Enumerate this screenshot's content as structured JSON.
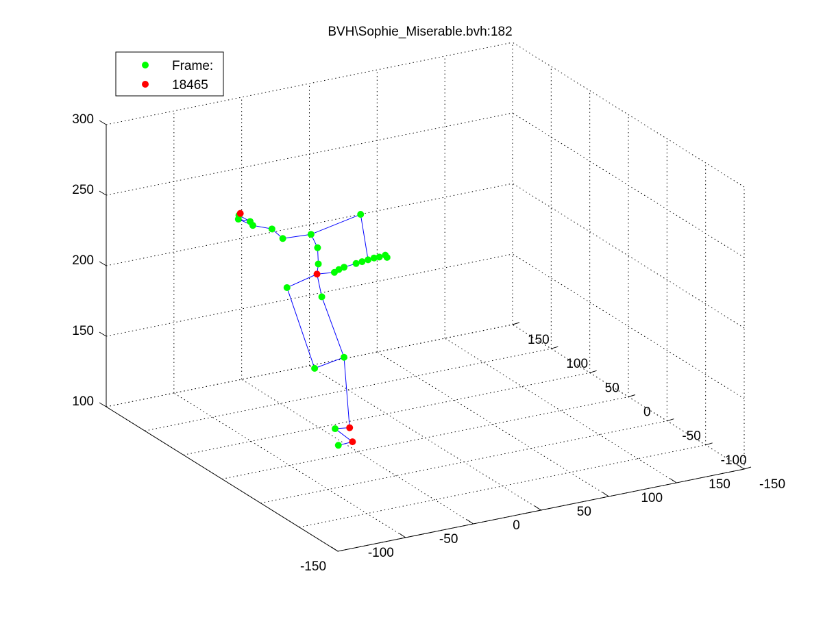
{
  "chart_data": {
    "type": "scatter3d",
    "title": "BVH\\Sophie_Miserable.bvh:182",
    "xlim": [
      -150,
      150
    ],
    "ylim": [
      -150,
      150
    ],
    "zlim": [
      100,
      300
    ],
    "x_ticks": [
      "-150",
      "-100",
      "-50",
      "0",
      "50",
      "100",
      "150"
    ],
    "y_ticks": [
      "-150",
      "-100",
      "-50",
      "0",
      "50",
      "100",
      "150"
    ],
    "z_ticks": [
      "100",
      "150",
      "200",
      "250",
      "300"
    ],
    "grid": true,
    "legend": {
      "placement": "top-left",
      "entries": [
        {
          "label": "Frame:",
          "color": "#00ff00"
        },
        {
          "label": "18465",
          "color": "#ff0000"
        }
      ]
    },
    "colors": {
      "joint": "#00ff00",
      "end_effector": "#ff0000",
      "bone": "#0000ff"
    },
    "joints": [
      {
        "x": -44,
        "y": 17,
        "z": 100,
        "type": "end"
      },
      {
        "x": -33,
        "y": 40,
        "z": 100,
        "type": "end"
      },
      {
        "x": -55,
        "y": 16,
        "z": 100
      },
      {
        "x": -42,
        "y": 43,
        "z": 100
      },
      {
        "x": -60,
        "y": 38,
        "z": 148
      },
      {
        "x": -40,
        "y": 35,
        "z": 153
      },
      {
        "x": -65,
        "y": 65,
        "z": 197
      },
      {
        "x": -45,
        "y": 55,
        "z": 190
      },
      {
        "x": -40,
        "y": 70,
        "z": 200,
        "type": "end"
      },
      {
        "x": -30,
        "y": 65,
        "z": 201
      },
      {
        "x": -25,
        "y": 68,
        "z": 201
      },
      {
        "x": -20,
        "y": 70,
        "z": 201
      },
      {
        "x": -10,
        "y": 72,
        "z": 201
      },
      {
        "x": -5,
        "y": 73,
        "z": 201
      },
      {
        "x": 0,
        "y": 74,
        "z": 201
      },
      {
        "x": 5,
        "y": 75,
        "z": 201
      },
      {
        "x": 10,
        "y": 77,
        "z": 200
      },
      {
        "x": 15,
        "y": 78,
        "z": 200
      },
      {
        "x": 14,
        "y": 74,
        "z": 200
      },
      {
        "x": -39,
        "y": 70,
        "z": 207
      },
      {
        "x": -35,
        "y": 78,
        "z": 215
      },
      {
        "x": -33,
        "y": 90,
        "z": 220
      },
      {
        "x": -55,
        "y": 88,
        "z": 222
      },
      {
        "x": -55,
        "y": 102,
        "z": 224
      },
      {
        "x": -60,
        "y": 118,
        "z": 222
      },
      {
        "x": -65,
        "y": 128,
        "z": 224
      },
      {
        "x": -58,
        "y": 125,
        "z": 222
      },
      {
        "x": -60,
        "y": 136,
        "z": 223
      },
      {
        "x": -55,
        "y": 143,
        "z": 221,
        "type": "end"
      },
      {
        "x": 15,
        "y": 110,
        "z": 218
      }
    ],
    "bones": [
      [
        0,
        2
      ],
      [
        0,
        3
      ],
      [
        1,
        3
      ],
      [
        1,
        5
      ],
      [
        5,
        4
      ],
      [
        4,
        6
      ],
      [
        5,
        7
      ],
      [
        7,
        8
      ],
      [
        6,
        8
      ],
      [
        8,
        9
      ],
      [
        9,
        10
      ],
      [
        10,
        11
      ],
      [
        11,
        12
      ],
      [
        12,
        13
      ],
      [
        13,
        14
      ],
      [
        14,
        15
      ],
      [
        15,
        16
      ],
      [
        16,
        17
      ],
      [
        17,
        18
      ],
      [
        8,
        19
      ],
      [
        19,
        20
      ],
      [
        20,
        21
      ],
      [
        21,
        22
      ],
      [
        22,
        23
      ],
      [
        23,
        24
      ],
      [
        24,
        25
      ],
      [
        25,
        26
      ],
      [
        26,
        27
      ],
      [
        27,
        28
      ],
      [
        21,
        29
      ],
      [
        29,
        14
      ]
    ]
  }
}
